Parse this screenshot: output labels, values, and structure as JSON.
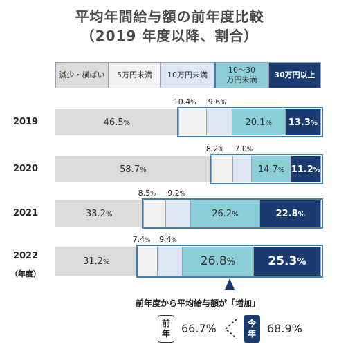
{
  "title": {
    "line1": "平均年間給与額の前年度比較",
    "line2": "（2019 年度以降、割合）"
  },
  "legend": [
    "減少・横ばい",
    "5万円未満",
    "10万円未満",
    "10～30\n万円未満",
    "30万円以上"
  ],
  "year_unit": "（年度）",
  "colors": {
    "decrease": "#dcdcdc",
    "under5": "#f2f2f2",
    "under10": "#dde6f4",
    "under30": "#8ccfd8",
    "over30": "#1a3b70",
    "highlight": "#3b7fb5"
  },
  "chart_data": {
    "type": "bar",
    "orientation": "horizontal",
    "stacked": true,
    "categories": [
      "2019",
      "2020",
      "2021",
      "2022"
    ],
    "series": [
      {
        "name": "減少・横ばい",
        "values": [
          46.5,
          58.7,
          33.2,
          31.2
        ],
        "labels": [
          "46.5%",
          "58.7%",
          "33.2%",
          "31.2%"
        ]
      },
      {
        "name": "5万円未満",
        "values": [
          10.4,
          8.2,
          8.5,
          7.4
        ],
        "labels": [
          "10.4%",
          "8.2%",
          "8.5%",
          "7.4%"
        ]
      },
      {
        "name": "10万円未満",
        "values": [
          9.6,
          7.0,
          9.2,
          9.4
        ],
        "labels": [
          "9.6%",
          "7.0%",
          "9.2%",
          "9.4%"
        ]
      },
      {
        "name": "10～30万円未満",
        "values": [
          20.1,
          14.7,
          26.2,
          26.8
        ],
        "labels": [
          "20.1%",
          "14.7%",
          "26.2%",
          "26.8%"
        ]
      },
      {
        "name": "30万円以上",
        "values": [
          13.3,
          11.2,
          22.8,
          25.3
        ],
        "labels": [
          "13.3%",
          "11.2%",
          "22.8%",
          "25.3%"
        ]
      }
    ]
  },
  "comparison": {
    "caption": "前年度から平均給与額が「増加」",
    "prev_label": [
      "前",
      "年"
    ],
    "prev_value": "66.7%",
    "curr_label": [
      "今",
      "年"
    ],
    "curr_value": "68.9%"
  }
}
